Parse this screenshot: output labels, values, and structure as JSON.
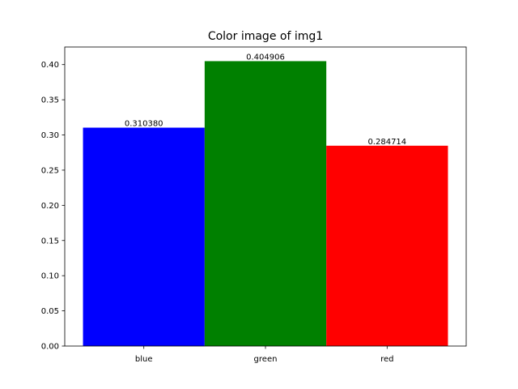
{
  "chart_data": {
    "type": "bar",
    "title": "Color image of img1",
    "xlabel": "",
    "ylabel": "",
    "categories": [
      "blue",
      "green",
      "red"
    ],
    "values": [
      0.31038,
      0.404906,
      0.284714
    ],
    "data_labels": [
      "0.310380",
      "0.404906",
      "0.284714"
    ],
    "bar_colors": [
      "#0000ff",
      "#008000",
      "#ff0000"
    ],
    "ylim": [
      0,
      0.425
    ],
    "yticks": [
      0.0,
      0.05,
      0.1,
      0.15,
      0.2,
      0.25,
      0.3,
      0.35,
      0.4
    ],
    "ytick_labels": [
      "0.00",
      "0.05",
      "0.10",
      "0.15",
      "0.20",
      "0.25",
      "0.30",
      "0.35",
      "0.40"
    ],
    "grid": false,
    "legend": "none"
  }
}
